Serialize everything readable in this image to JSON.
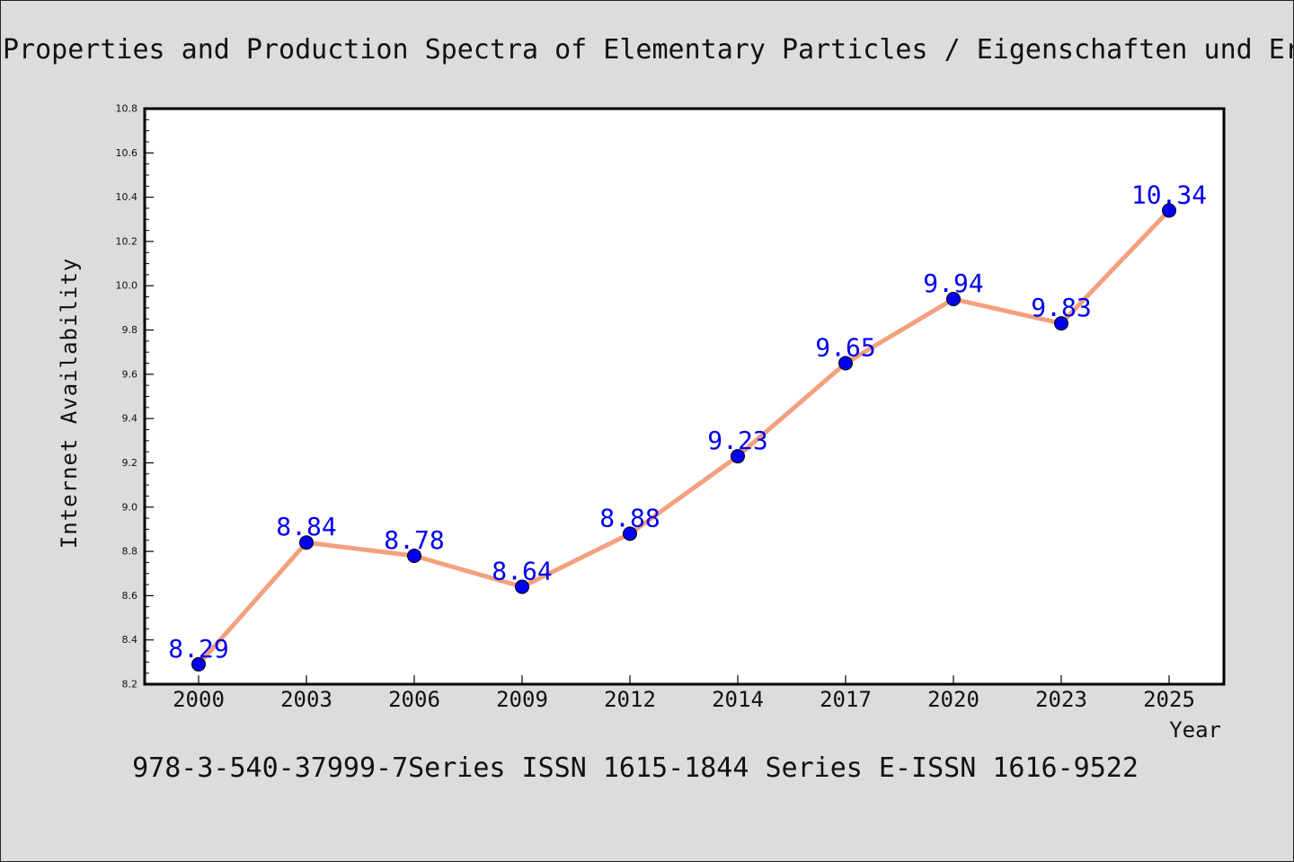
{
  "chart_data": {
    "type": "line",
    "title": "Properties and Production Spectra of Elementary Particles / Eigenschaften und Er",
    "xlabel": "Year",
    "ylabel": "Internet Availability",
    "subtitle": "978-3-540-37999-7Series ISSN 1615-1844 Series E-ISSN 1616-9522",
    "categories": [
      "2000",
      "2003",
      "2006",
      "2009",
      "2012",
      "2014",
      "2017",
      "2020",
      "2023",
      "2025"
    ],
    "values": [
      8.29,
      8.84,
      8.78,
      8.64,
      8.88,
      9.23,
      9.65,
      9.94,
      9.83,
      10.34
    ],
    "value_labels": [
      "8.29",
      "8.84",
      "8.78",
      "8.64",
      "8.88",
      "9.23",
      "9.65",
      "9.94",
      "9.83",
      "10.34"
    ],
    "ylim": [
      8.2,
      10.8
    ],
    "y_major_ticks": [
      8.2,
      8.4,
      8.6,
      8.8,
      9.0,
      9.2,
      9.4,
      9.6,
      9.8,
      10.0,
      10.2,
      10.4,
      10.6,
      10.8
    ],
    "y_tick_labels": [
      "8.2",
      "8.4",
      "8.6",
      "8.8",
      "9.0",
      "9.2",
      "9.4",
      "9.6",
      "9.8",
      "10.0",
      "10.2",
      "10.4",
      "10.6",
      "10.8"
    ],
    "grid": false,
    "legend": "none",
    "colors": {
      "line": "#f4a07e",
      "marker": "#0000ee",
      "value_label": "#0000ee",
      "background": "#dcdcdc",
      "plot_background": "#ffffff",
      "axis": "#000000"
    }
  }
}
